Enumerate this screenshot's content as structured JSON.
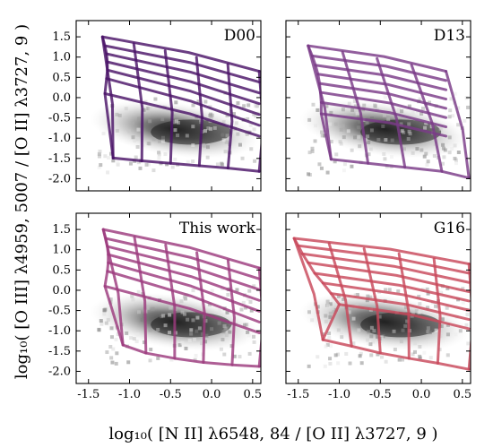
{
  "xlabel": "log₁₀( [N II] λ6548, 84 / [O II] λ3727, 9 )",
  "ylabel": "log₁₀( [O III] λ4959, 5007 / [O II] λ3727, 9 )",
  "chart_data": [
    {
      "type": "scatter",
      "panel": "D00",
      "title": "D00",
      "grid_color": "#4b1468",
      "xlim": [
        -1.65,
        0.6
      ],
      "ylim": [
        -2.3,
        1.9
      ],
      "xticks": [],
      "yticks": [
        "1.5",
        "1.0",
        "0.5",
        "0.0",
        "-0.5",
        "-1.0",
        "-1.5",
        "-2.0"
      ],
      "grid_top": [
        [
          -1.33,
          1.5
        ],
        [
          -1.3,
          1.28
        ],
        [
          -1.28,
          1.08
        ],
        [
          -1.27,
          0.88
        ],
        [
          -1.27,
          0.68
        ],
        [
          -1.28,
          0.47
        ],
        [
          -1.3,
          0.1
        ]
      ],
      "grid_bottom": [
        [
          -1.2,
          -1.49
        ],
        [
          -0.85,
          -1.56
        ],
        [
          -0.5,
          -1.62
        ],
        [
          -0.15,
          -1.68
        ],
        [
          0.2,
          -1.74
        ],
        [
          0.58,
          -1.82
        ]
      ],
      "grid_corner": [
        0.58,
        -0.95
      ]
    },
    {
      "type": "scatter",
      "panel": "D13",
      "title": "D13",
      "grid_color": "#7a3a88",
      "xlim": [
        -1.65,
        0.6
      ],
      "ylim": [
        -2.3,
        1.9
      ],
      "xticks": [],
      "yticks": [],
      "grid_top": [
        [
          -1.38,
          1.28
        ],
        [
          -1.33,
          1.03
        ],
        [
          -1.29,
          0.8
        ],
        [
          -1.26,
          0.58
        ],
        [
          -1.24,
          0.35
        ],
        [
          -1.23,
          0.13
        ],
        [
          -1.22,
          -0.12
        ],
        [
          -1.22,
          -0.4
        ]
      ],
      "grid_bottom": [
        [
          -1.1,
          -1.52
        ],
        [
          -0.65,
          -1.62
        ],
        [
          -0.2,
          -1.72
        ],
        [
          0.25,
          -1.82
        ],
        [
          0.58,
          -1.98
        ]
      ],
      "grid_corner": [
        0.3,
        -0.95
      ]
    },
    {
      "type": "scatter",
      "panel": "This work",
      "title": "This work",
      "grid_color": "#9c3a7e",
      "xlim": [
        -1.65,
        0.6
      ],
      "ylim": [
        -2.3,
        1.9
      ],
      "xticks": [
        "-1.5",
        "-1.0",
        "-0.5",
        "0.0",
        "0.5"
      ],
      "yticks": [
        "1.5",
        "1.0",
        "0.5",
        "0.0",
        "-0.5",
        "-1.0",
        "-1.5",
        "-2.0"
      ],
      "grid_top": [
        [
          -1.32,
          1.5
        ],
        [
          -1.29,
          1.28
        ],
        [
          -1.27,
          1.08
        ],
        [
          -1.26,
          0.88
        ],
        [
          -1.26,
          0.68
        ],
        [
          -1.27,
          0.47
        ],
        [
          -1.3,
          0.1
        ]
      ],
      "grid_bottom": [
        [
          -1.08,
          -1.35
        ],
        [
          -0.8,
          -1.55
        ],
        [
          -0.45,
          -1.68
        ],
        [
          -0.1,
          -1.78
        ],
        [
          0.25,
          -1.84
        ],
        [
          0.58,
          -1.88
        ]
      ],
      "grid_corner": [
        0.58,
        -1.05
      ]
    },
    {
      "type": "scatter",
      "panel": "G16",
      "title": "G16",
      "grid_color": "#c8485a",
      "xlim": [
        -1.65,
        0.6
      ],
      "ylim": [
        -2.3,
        1.9
      ],
      "xticks": [
        "-1.5",
        "-1.0",
        "-0.5",
        "0.0",
        "0.5"
      ],
      "yticks": [],
      "grid_top": [
        [
          -1.55,
          1.28
        ],
        [
          -1.5,
          1.1
        ],
        [
          -1.45,
          0.9
        ],
        [
          -1.38,
          0.68
        ],
        [
          -1.3,
          0.42
        ],
        [
          -1.2,
          0.18
        ],
        [
          -1.1,
          -0.08
        ],
        [
          -1.0,
          -0.35
        ]
      ],
      "grid_bottom": [
        [
          -1.2,
          -1.22
        ],
        [
          -0.85,
          -1.38
        ],
        [
          -0.5,
          -1.55
        ],
        [
          -0.15,
          -1.68
        ],
        [
          0.2,
          -1.8
        ],
        [
          0.58,
          -1.95
        ]
      ],
      "grid_corner": [
        0.58,
        -0.95
      ]
    }
  ]
}
